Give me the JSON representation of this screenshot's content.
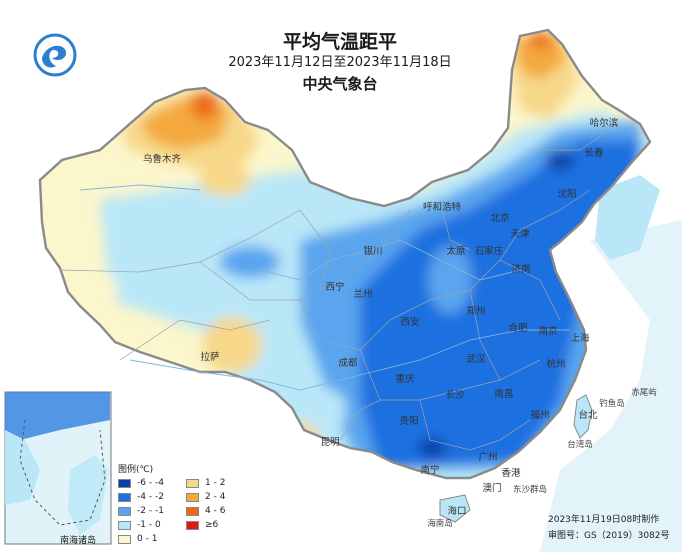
{
  "header": {
    "title": "平均气温距平",
    "date_range": "2023年11月12日至2023年11月18日",
    "agency": "中央气象台"
  },
  "logo": {
    "icon": "cma-logo-icon",
    "color": "#2a7fd0"
  },
  "legend": {
    "title": "图例(℃)",
    "items": [
      {
        "label": "-6 - -4",
        "color": "#0a3fa8"
      },
      {
        "label": "-4 - -2",
        "color": "#1e6fe0"
      },
      {
        "label": "-2 - -1",
        "color": "#5aa5ee"
      },
      {
        "label": "-1 - 0",
        "color": "#b9e7f8"
      },
      {
        "label": "0 - 1",
        "color": "#fbf6cc"
      },
      {
        "label": "1 - 2",
        "color": "#f7d88a"
      },
      {
        "label": "2 - 4",
        "color": "#f3a93c"
      },
      {
        "label": "4 - 6",
        "color": "#ee6a12"
      },
      {
        "label": "≥6",
        "color": "#e11a10"
      }
    ]
  },
  "cities": [
    {
      "name": "乌鲁木齐"
    },
    {
      "name": "哈尔滨"
    },
    {
      "name": "长春"
    },
    {
      "name": "沈阳"
    },
    {
      "name": "呼和浩特"
    },
    {
      "name": "北京"
    },
    {
      "name": "天津"
    },
    {
      "name": "石家庄"
    },
    {
      "name": "太原"
    },
    {
      "name": "济南"
    },
    {
      "name": "银川"
    },
    {
      "name": "兰州"
    },
    {
      "name": "西宁"
    },
    {
      "name": "西安"
    },
    {
      "name": "郑州"
    },
    {
      "name": "合肥"
    },
    {
      "name": "南京"
    },
    {
      "name": "上海"
    },
    {
      "name": "杭州"
    },
    {
      "name": "武汉"
    },
    {
      "name": "成都"
    },
    {
      "name": "重庆"
    },
    {
      "name": "长沙"
    },
    {
      "name": "南昌"
    },
    {
      "name": "福州"
    },
    {
      "name": "台北"
    },
    {
      "name": "贵阳"
    },
    {
      "name": "昆明"
    },
    {
      "name": "拉萨"
    },
    {
      "name": "南宁"
    },
    {
      "name": "广州"
    },
    {
      "name": "香港"
    },
    {
      "name": "澳门"
    },
    {
      "name": "海口"
    }
  ],
  "islands": [
    {
      "name": "东沙群岛"
    },
    {
      "name": "台湾岛"
    },
    {
      "name": "钓鱼岛"
    },
    {
      "name": "赤尾屿"
    },
    {
      "name": "海南岛"
    }
  ],
  "inset": {
    "label": "南海诸岛"
  },
  "footer": {
    "issued": "2023年11月19日08时制作",
    "review_no": "审图号：GS（2019）3082号"
  }
}
